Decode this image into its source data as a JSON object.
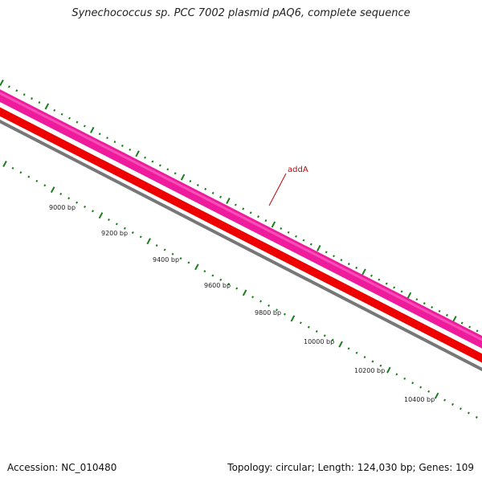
{
  "title": "Synechococcus sp. PCC 7002 plasmid pAQ6, complete sequence",
  "footer": {
    "accession": "Accession: NC_010480",
    "summary": "Topology: circular; Length: 124,030 bp; Genes: 109"
  },
  "colors": {
    "forward_track": "#ee1c9c",
    "reverse_track": "#ee0000",
    "backbone": "#777777",
    "ticks": "#1a7f1a",
    "gene_label": "#cc0000"
  },
  "gene_labels": [
    {
      "name": "addA"
    }
  ],
  "scale": {
    "labels": [
      "9000 bp",
      "9200 bp",
      "9400 bp",
      "9600 bp",
      "9800 bp",
      "10000 bp",
      "10200 bp",
      "10400 bp"
    ]
  }
}
